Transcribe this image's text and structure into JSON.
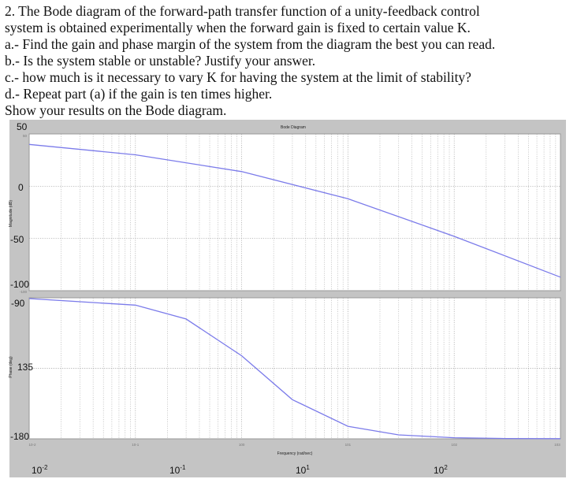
{
  "problem": {
    "lines": [
      "2.  The Bode diagram of the forward-path transfer function of a unity-feedback control",
      "system is obtained experimentally when the forward gain is fixed to certain value K.",
      "a.- Find the gain and phase margin of the system from the diagram the best you can read.",
      "b.- Is the system stable or unstable? Justify your answer.",
      "c.- how much is it necessary to vary K for having the system at the limit of stability?",
      "d.- Repeat part (a) if the gain is ten times higher.",
      "Show your results on the Bode diagram."
    ]
  },
  "chart_data": {
    "type": "line",
    "title": "Bode Diagram",
    "xlabel": "Frequency  (rad/sec)",
    "xscale": "log",
    "xlim": [
      0.01,
      1000
    ],
    "x_tick_labels_large": [
      "10-2",
      "10-1",
      "101",
      "102"
    ],
    "x_tick_labels_small": [
      "10-2",
      "10-1",
      "100",
      "101",
      "102",
      "103"
    ],
    "grid": true,
    "colors": {
      "line": "#7b7bea",
      "panel_frame": "#b8b8b8",
      "plot_bg": "#ffffff",
      "grid": "#9a9a9a"
    },
    "panels": [
      {
        "name": "magnitude",
        "ylabel": "Magnitude (dB)",
        "ylim": [
          -100,
          50
        ],
        "y_tick_labels": [
          "50",
          "0",
          "-50",
          "-100"
        ],
        "series": [
          {
            "x": [
              0.01,
              0.1,
              1,
              10,
              100,
              1000
            ],
            "values": [
              40,
              30,
              14,
              -12,
              -48,
              -87
            ]
          }
        ]
      },
      {
        "name": "phase",
        "ylabel": "Phase (deg)",
        "ylim": [
          -180,
          -90
        ],
        "y_tick_labels": [
          "-90",
          "-135",
          "-180"
        ],
        "y_tick_labels_printed": [
          "-90",
          "135",
          "-180"
        ],
        "series": [
          {
            "x": [
              0.01,
              0.1,
              0.3,
              1,
              3,
              10,
              30,
              100,
              300,
              1000
            ],
            "values": [
              -90.5,
              -94.7,
              -103.5,
              -127,
              -155,
              -172,
              -177.5,
              -179.3,
              -179.8,
              -179.9
            ]
          }
        ]
      }
    ]
  }
}
